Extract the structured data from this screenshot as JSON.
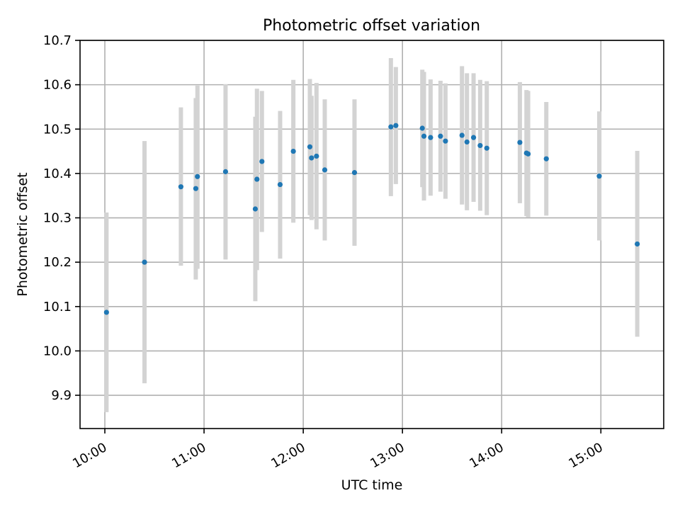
{
  "chart_data": {
    "type": "scatter",
    "title": "Photometric offset variation",
    "xlabel": "UTC time",
    "ylabel": "Photometric offset",
    "x_ticks": [
      "10:00",
      "11:00",
      "12:00",
      "13:00",
      "14:00",
      "15:00"
    ],
    "y_ticks": [
      "9.9",
      "10.0",
      "10.1",
      "10.2",
      "10.3",
      "10.4",
      "10.5",
      "10.6",
      "10.7"
    ],
    "xlim": [
      "09:45",
      "15:38"
    ],
    "ylim": [
      9.825,
      10.7
    ],
    "grid": true,
    "colors": {
      "points": "#1f77b4",
      "error_bars": "#d3d3d3",
      "grid": "#b0b0b0"
    },
    "series": [
      {
        "points": [
          {
            "x": "10:01",
            "y": 10.087,
            "ylow": 9.862,
            "yhigh": 10.312
          },
          {
            "x": "10:24",
            "y": 10.2,
            "ylow": 9.927,
            "yhigh": 10.473
          },
          {
            "x": "10:46",
            "y": 10.37,
            "ylow": 10.192,
            "yhigh": 10.549
          },
          {
            "x": "10:55",
            "y": 10.366,
            "ylow": 10.161,
            "yhigh": 10.57
          },
          {
            "x": "10:56",
            "y": 10.393,
            "ylow": 10.185,
            "yhigh": 10.598
          },
          {
            "x": "11:13",
            "y": 10.404,
            "ylow": 10.206,
            "yhigh": 10.601
          },
          {
            "x": "11:31",
            "y": 10.32,
            "ylow": 10.112,
            "yhigh": 10.528
          },
          {
            "x": "11:32",
            "y": 10.387,
            "ylow": 10.182,
            "yhigh": 10.591
          },
          {
            "x": "11:35",
            "y": 10.427,
            "ylow": 10.268,
            "yhigh": 10.586
          },
          {
            "x": "11:46",
            "y": 10.375,
            "ylow": 10.208,
            "yhigh": 10.541
          },
          {
            "x": "11:54",
            "y": 10.45,
            "ylow": 10.289,
            "yhigh": 10.611
          },
          {
            "x": "12:04",
            "y": 10.46,
            "ylow": 10.306,
            "yhigh": 10.613
          },
          {
            "x": "12:05",
            "y": 10.435,
            "ylow": 10.295,
            "yhigh": 10.575
          },
          {
            "x": "12:08",
            "y": 10.439,
            "ylow": 10.274,
            "yhigh": 10.604
          },
          {
            "x": "12:13",
            "y": 10.408,
            "ylow": 10.249,
            "yhigh": 10.567
          },
          {
            "x": "12:31",
            "y": 10.402,
            "ylow": 10.237,
            "yhigh": 10.567
          },
          {
            "x": "12:53",
            "y": 10.505,
            "ylow": 10.349,
            "yhigh": 10.66
          },
          {
            "x": "12:56",
            "y": 10.508,
            "ylow": 10.376,
            "yhigh": 10.64
          },
          {
            "x": "13:12",
            "y": 10.502,
            "ylow": 10.369,
            "yhigh": 10.634
          },
          {
            "x": "13:13",
            "y": 10.484,
            "ylow": 10.339,
            "yhigh": 10.629
          },
          {
            "x": "13:17",
            "y": 10.481,
            "ylow": 10.35,
            "yhigh": 10.612
          },
          {
            "x": "13:23",
            "y": 10.484,
            "ylow": 10.359,
            "yhigh": 10.609
          },
          {
            "x": "13:26",
            "y": 10.473,
            "ylow": 10.343,
            "yhigh": 10.603
          },
          {
            "x": "13:36",
            "y": 10.486,
            "ylow": 10.33,
            "yhigh": 10.642
          },
          {
            "x": "13:39",
            "y": 10.471,
            "ylow": 10.317,
            "yhigh": 10.626
          },
          {
            "x": "13:43",
            "y": 10.481,
            "ylow": 10.336,
            "yhigh": 10.626
          },
          {
            "x": "13:47",
            "y": 10.463,
            "ylow": 10.316,
            "yhigh": 10.611
          },
          {
            "x": "13:51",
            "y": 10.457,
            "ylow": 10.306,
            "yhigh": 10.608
          },
          {
            "x": "14:11",
            "y": 10.47,
            "ylow": 10.333,
            "yhigh": 10.606
          },
          {
            "x": "14:15",
            "y": 10.446,
            "ylow": 10.304,
            "yhigh": 10.588
          },
          {
            "x": "14:16",
            "y": 10.444,
            "ylow": 10.301,
            "yhigh": 10.586
          },
          {
            "x": "14:27",
            "y": 10.433,
            "ylow": 10.305,
            "yhigh": 10.561
          },
          {
            "x": "14:59",
            "y": 10.394,
            "ylow": 10.249,
            "yhigh": 10.54
          },
          {
            "x": "15:22",
            "y": 10.241,
            "ylow": 10.032,
            "yhigh": 10.451
          }
        ]
      }
    ]
  }
}
